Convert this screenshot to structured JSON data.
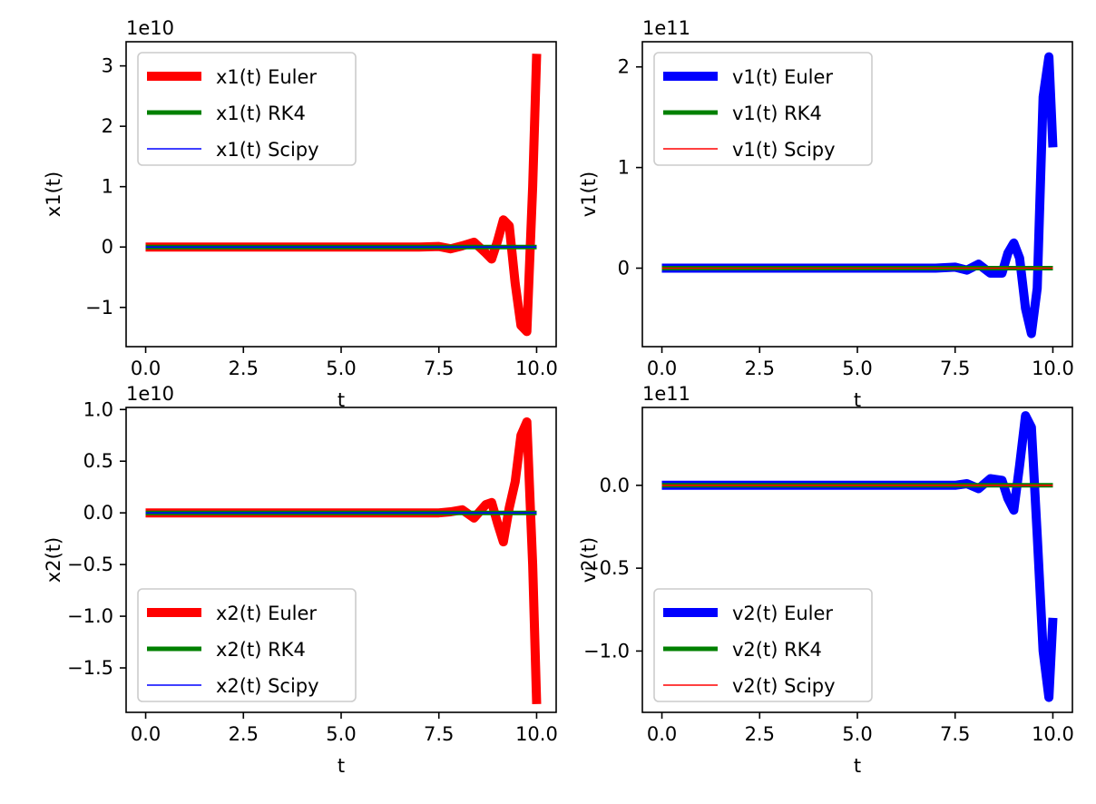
{
  "chart_data": [
    {
      "type": "line",
      "xlabel": "t",
      "ylabel": "x1(t)",
      "offset_text": "1e10",
      "xlim": [
        -0.5,
        10.5
      ],
      "ylim": [
        -1.65,
        3.4
      ],
      "scale": 10000000000.0,
      "xticks": [
        0,
        2.5,
        5,
        7.5,
        10
      ],
      "xtick_labels": [
        "0.0",
        "2.5",
        "5.0",
        "7.5",
        "10.0"
      ],
      "yticks": [
        -1,
        0,
        1,
        2,
        3
      ],
      "ytick_labels": [
        "−1",
        "0",
        "1",
        "2",
        "3"
      ],
      "legend_position": "upper-left",
      "series": [
        {
          "name": "x1(t) Euler",
          "color": "#ff0000",
          "lw": 10,
          "x": [
            0,
            1,
            2,
            3,
            4,
            5,
            6,
            7,
            7.5,
            7.8,
            8.1,
            8.4,
            8.7,
            8.85,
            9.0,
            9.15,
            9.3,
            9.45,
            9.6,
            9.75,
            9.9,
            10.0
          ],
          "y": [
            0,
            0,
            0,
            0,
            0,
            0,
            0,
            0,
            0.01,
            -0.03,
            0.02,
            0.08,
            -0.1,
            -0.2,
            0.1,
            0.45,
            0.35,
            -0.6,
            -1.3,
            -1.4,
            1.0,
            3.2
          ]
        },
        {
          "name": "x1(t) RK4",
          "color": "#008000",
          "lw": 5,
          "x": [
            0,
            10
          ],
          "y": [
            0,
            0
          ]
        },
        {
          "name": "x1(t) Scipy",
          "color": "#0000ff",
          "lw": 1.6,
          "x": [
            0,
            10
          ],
          "y": [
            0,
            0
          ]
        }
      ]
    },
    {
      "type": "line",
      "xlabel": "t",
      "ylabel": "v1(t)",
      "offset_text": "1e11",
      "xlim": [
        -0.5,
        10.5
      ],
      "ylim": [
        -0.78,
        2.25
      ],
      "scale": 100000000000.0,
      "xticks": [
        0,
        2.5,
        5,
        7.5,
        10
      ],
      "xtick_labels": [
        "0.0",
        "2.5",
        "5.0",
        "7.5",
        "10.0"
      ],
      "yticks": [
        0,
        1,
        2
      ],
      "ytick_labels": [
        "0",
        "1",
        "2"
      ],
      "legend_position": "upper-left",
      "series": [
        {
          "name": "v1(t) Euler",
          "color": "#0000ff",
          "lw": 10,
          "x": [
            0,
            1,
            2,
            3,
            4,
            5,
            6,
            7,
            7.5,
            7.8,
            8.1,
            8.4,
            8.7,
            8.85,
            9.0,
            9.15,
            9.3,
            9.45,
            9.6,
            9.75,
            9.9,
            10.0
          ],
          "y": [
            0,
            0,
            0,
            0,
            0,
            0,
            0,
            0,
            0.01,
            -0.02,
            0.04,
            -0.05,
            -0.05,
            0.15,
            0.25,
            0.1,
            -0.4,
            -0.65,
            -0.2,
            1.7,
            2.1,
            1.2
          ]
        },
        {
          "name": "v1(t) RK4",
          "color": "#008000",
          "lw": 5,
          "x": [
            0,
            10
          ],
          "y": [
            0,
            0
          ]
        },
        {
          "name": "v1(t) Scipy",
          "color": "#ff0000",
          "lw": 1.6,
          "x": [
            0,
            10
          ],
          "y": [
            0,
            0
          ]
        }
      ]
    },
    {
      "type": "line",
      "xlabel": "t",
      "ylabel": "x2(t)",
      "offset_text": "1e10",
      "xlim": [
        -0.5,
        10.5
      ],
      "ylim": [
        -1.93,
        1.02
      ],
      "scale": 10000000000.0,
      "xticks": [
        0,
        2.5,
        5,
        7.5,
        10
      ],
      "xtick_labels": [
        "0.0",
        "2.5",
        "5.0",
        "7.5",
        "10.0"
      ],
      "yticks": [
        -1.5,
        -1.0,
        -0.5,
        0.0,
        0.5,
        1.0
      ],
      "ytick_labels": [
        "−1.5",
        "−1.0",
        "−0.5",
        "0.0",
        "0.5",
        "1.0"
      ],
      "legend_position": "lower-left",
      "series": [
        {
          "name": "x2(t) Euler",
          "color": "#ff0000",
          "lw": 10,
          "x": [
            0,
            1,
            2,
            3,
            4,
            5,
            6,
            7,
            7.5,
            7.8,
            8.1,
            8.4,
            8.7,
            8.85,
            9.0,
            9.15,
            9.3,
            9.45,
            9.6,
            9.75,
            9.9,
            10.0
          ],
          "y": [
            0,
            0,
            0,
            0,
            0,
            0,
            0,
            0,
            0,
            0.01,
            0.03,
            -0.05,
            0.08,
            0.1,
            -0.1,
            -0.28,
            0.05,
            0.3,
            0.75,
            0.88,
            -0.5,
            -1.85
          ]
        },
        {
          "name": "x2(t) RK4",
          "color": "#008000",
          "lw": 5,
          "x": [
            0,
            10
          ],
          "y": [
            0,
            0
          ]
        },
        {
          "name": "x2(t) Scipy",
          "color": "#0000ff",
          "lw": 1.6,
          "x": [
            0,
            10
          ],
          "y": [
            0,
            0
          ]
        }
      ]
    },
    {
      "type": "line",
      "xlabel": "t",
      "ylabel": "v2(t)",
      "offset_text": "1e11",
      "xlim": [
        -0.5,
        10.5
      ],
      "ylim": [
        -1.37,
        0.47
      ],
      "scale": 100000000000.0,
      "xticks": [
        0,
        2.5,
        5,
        7.5,
        10
      ],
      "xtick_labels": [
        "0.0",
        "2.5",
        "5.0",
        "7.5",
        "10.0"
      ],
      "yticks": [
        -1.0,
        -0.5,
        0.0
      ],
      "ytick_labels": [
        "−1.0",
        "−0.5",
        "0.0"
      ],
      "legend_position": "lower-left",
      "series": [
        {
          "name": "v2(t) Euler",
          "color": "#0000ff",
          "lw": 10,
          "x": [
            0,
            1,
            2,
            3,
            4,
            5,
            6,
            7,
            7.5,
            7.8,
            8.1,
            8.4,
            8.7,
            8.85,
            9.0,
            9.15,
            9.3,
            9.45,
            9.6,
            9.75,
            9.9,
            10.0
          ],
          "y": [
            0,
            0,
            0,
            0,
            0,
            0,
            0,
            0,
            0,
            0.01,
            -0.02,
            0.04,
            0.03,
            -0.08,
            -0.15,
            0.12,
            0.42,
            0.35,
            -0.3,
            -1.0,
            -1.28,
            -0.8
          ]
        },
        {
          "name": "v2(t) RK4",
          "color": "#008000",
          "lw": 5,
          "x": [
            0,
            10
          ],
          "y": [
            0,
            0
          ]
        },
        {
          "name": "v2(t) Scipy",
          "color": "#ff0000",
          "lw": 1.6,
          "x": [
            0,
            10
          ],
          "y": [
            0,
            0
          ]
        }
      ]
    }
  ]
}
